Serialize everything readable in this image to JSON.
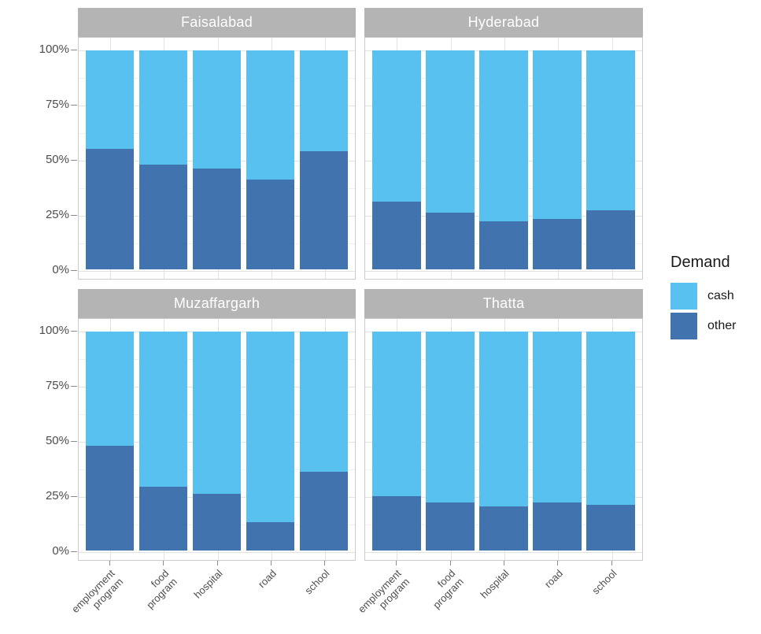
{
  "colors": {
    "cash": "#58C1EF",
    "other": "#4174AE",
    "strip_bg": "#B4B4B4",
    "strip_text": "#FFFFFF",
    "axis_text": "#4D4D4D",
    "grid_major": "#E2E2E2",
    "grid_minor": "#F0F0F0",
    "panel_border": "#CBCBCB",
    "tick": "#8C8C8C",
    "legend_text": "#1A1A1A"
  },
  "y_axis": {
    "tick_labels": [
      "100%",
      "75%",
      "50%",
      "25%",
      "0%"
    ]
  },
  "x_axis": {
    "tick_labels": [
      "employment\nprogram",
      "food\nprogram",
      "hospital",
      "road",
      "school"
    ]
  },
  "legend": {
    "title": "Demand",
    "items": [
      {
        "label": "cash",
        "color": "#58C1EF"
      },
      {
        "label": "other",
        "color": "#4174AE"
      }
    ]
  },
  "chart_data": {
    "type": "bar",
    "stacked": true,
    "unit": "percent",
    "legend_title": "Demand",
    "legend_position": "right",
    "grid": true,
    "ylim": [
      0,
      100
    ],
    "y_ticks": [
      0,
      25,
      50,
      75,
      100
    ],
    "categories": [
      "employment program",
      "food program",
      "hospital",
      "road",
      "school"
    ],
    "stack_order_top_to_bottom": [
      "cash",
      "other"
    ],
    "facets": [
      {
        "name": "Faisalabad",
        "series": [
          {
            "name": "cash",
            "values": [
              45,
              52,
              54,
              59,
              46
            ]
          },
          {
            "name": "other",
            "values": [
              55,
              48,
              46,
              41,
              54
            ]
          }
        ]
      },
      {
        "name": "Hyderabad",
        "series": [
          {
            "name": "cash",
            "values": [
              69,
              74,
              78,
              77,
              73
            ]
          },
          {
            "name": "other",
            "values": [
              31,
              26,
              22,
              23,
              27
            ]
          }
        ]
      },
      {
        "name": "Muzaffargarh",
        "series": [
          {
            "name": "cash",
            "values": [
              52,
              71,
              74,
              87,
              64
            ]
          },
          {
            "name": "other",
            "values": [
              48,
              29,
              26,
              13,
              36
            ]
          }
        ]
      },
      {
        "name": "Thatta",
        "series": [
          {
            "name": "cash",
            "values": [
              75,
              78,
              80,
              78,
              79
            ]
          },
          {
            "name": "other",
            "values": [
              25,
              22,
              20,
              22,
              21
            ]
          }
        ]
      }
    ]
  }
}
